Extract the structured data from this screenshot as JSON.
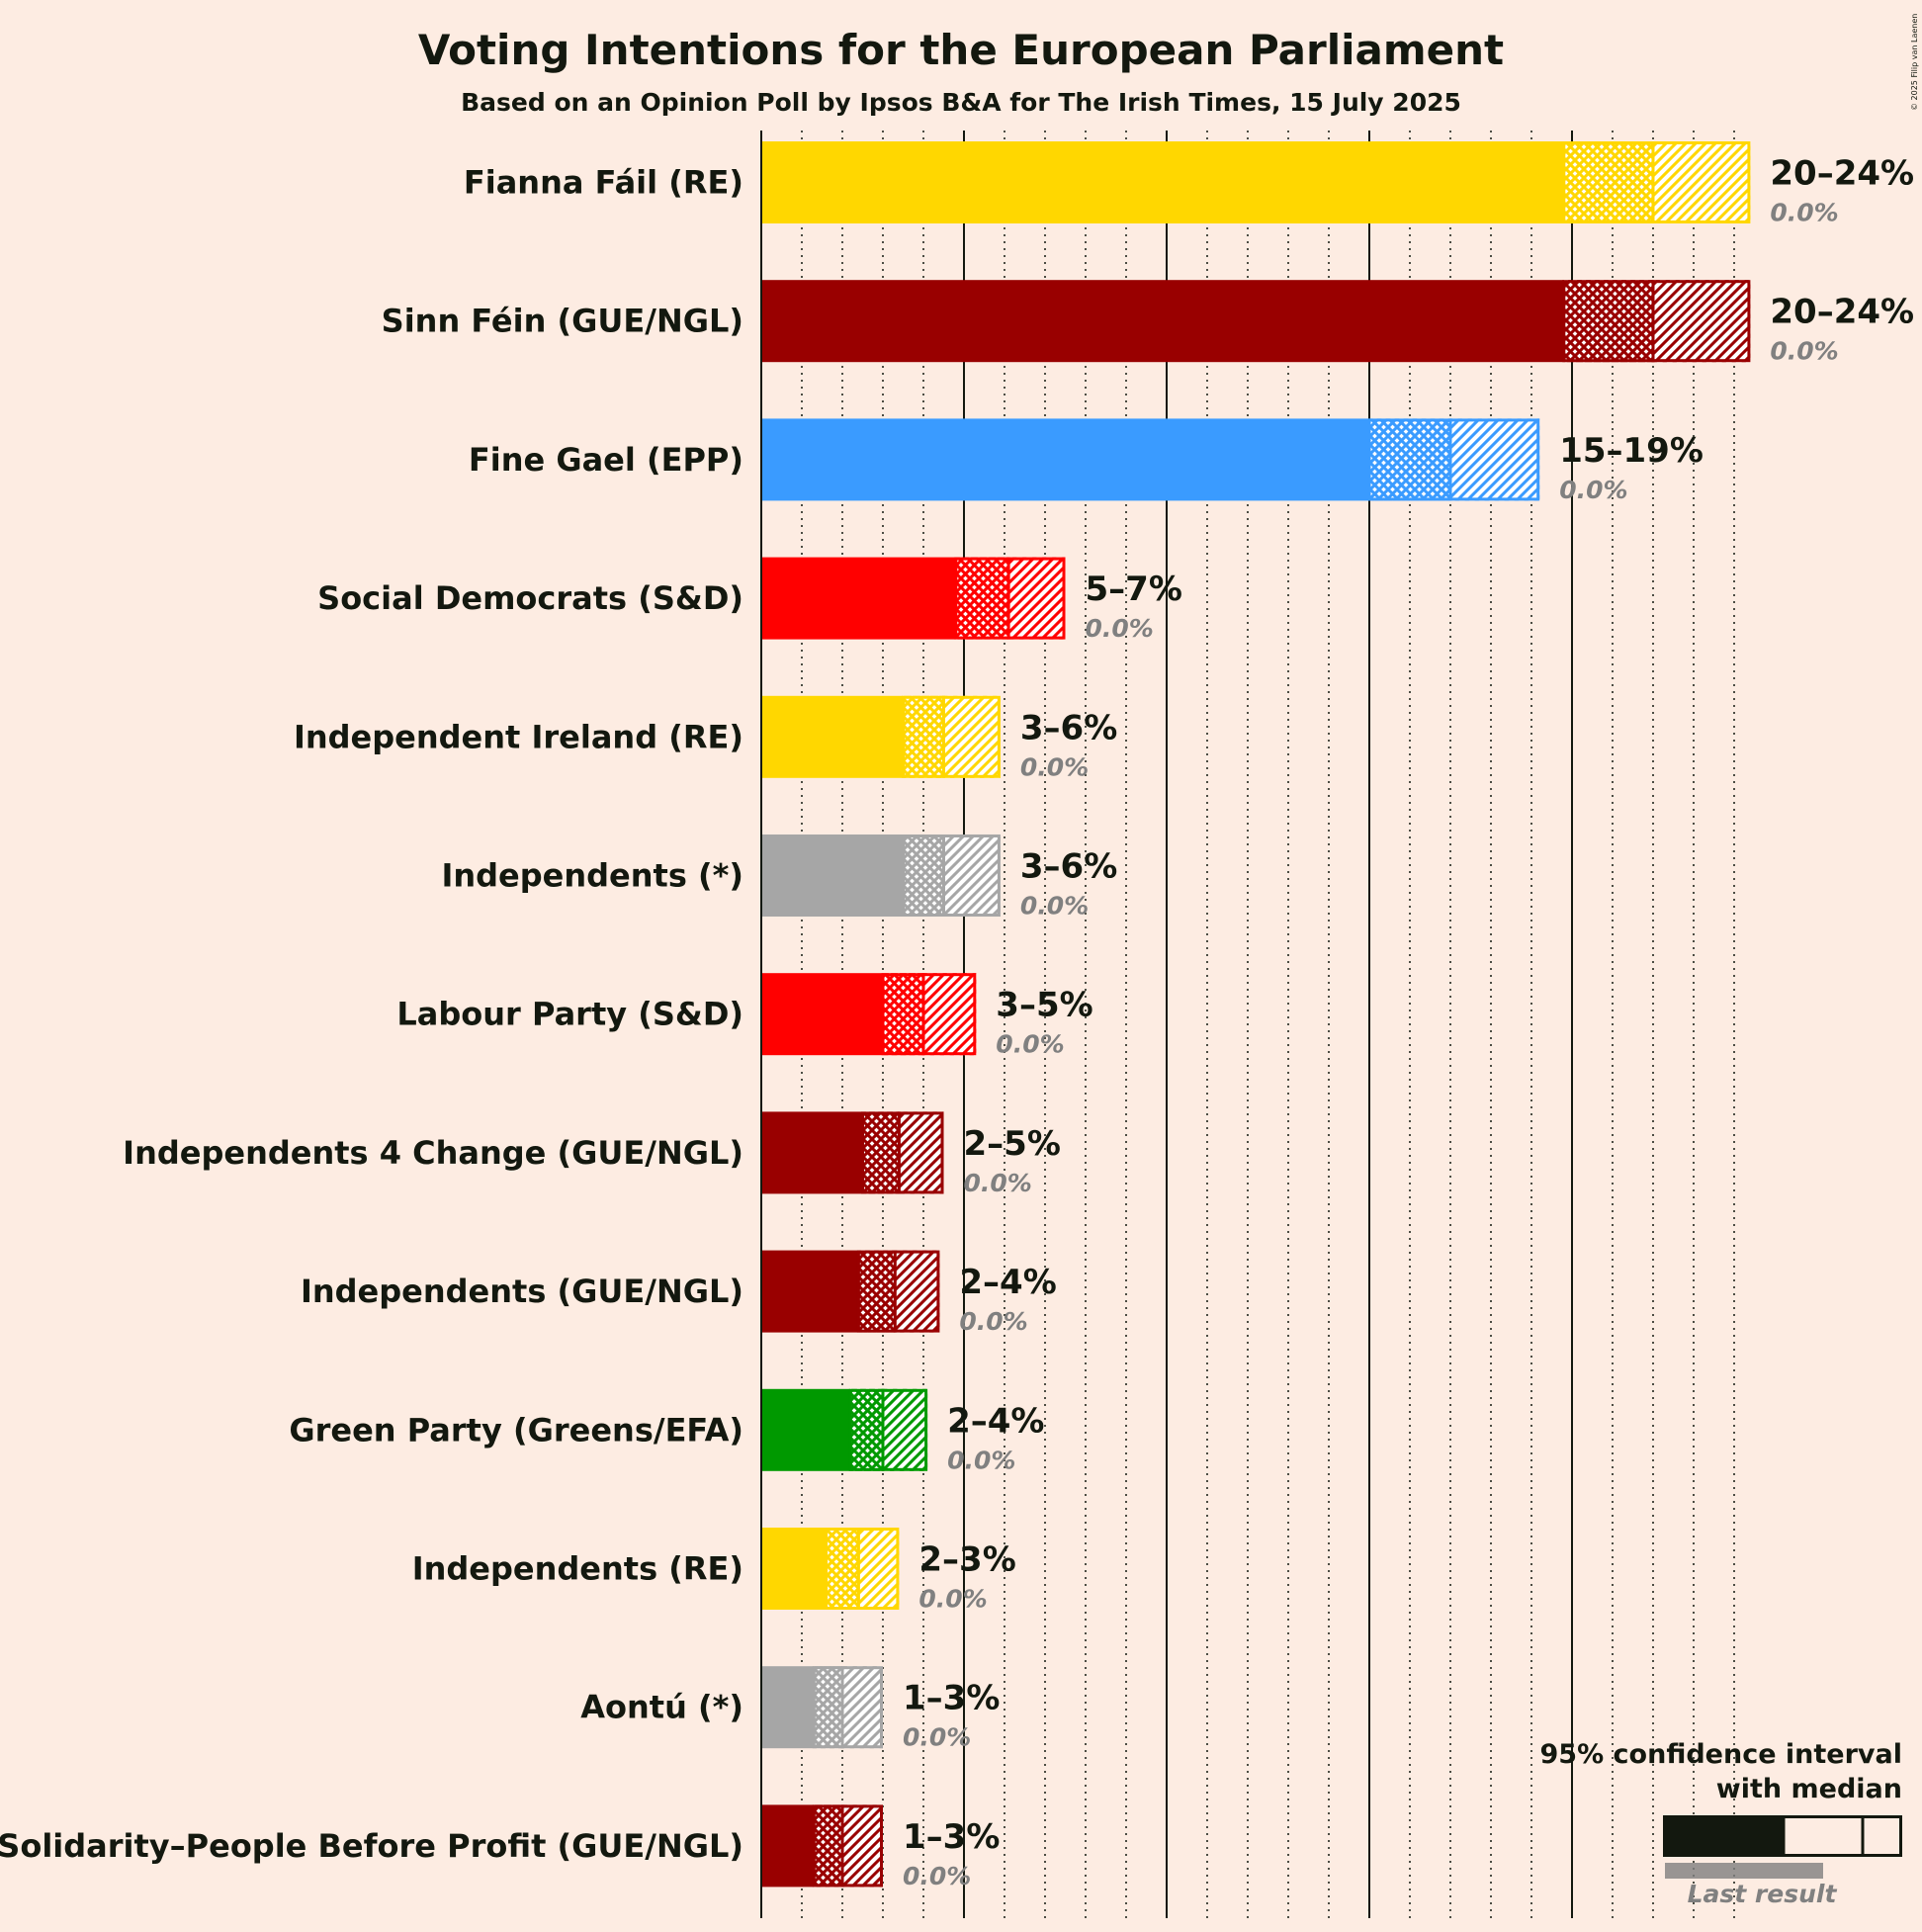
{
  "title": "Voting Intentions for the European Parliament",
  "subtitle": "Based on an Opinion Poll by Ipsos B&A for The Irish Times, 15 July 2025",
  "copyright": "© 2025 Filip van Laenen",
  "legend": {
    "line1": "95% confidence interval",
    "line2": "with median",
    "last_result": "Last result",
    "color": "#13180F"
  },
  "chart_data": {
    "type": "bar",
    "orientation": "horizontal",
    "unit": "%",
    "xlim": [
      0,
      24.5
    ],
    "grid": true,
    "legend_position": "bottom-right",
    "series_fields": [
      "ci_low",
      "median",
      "ci_high",
      "last_result"
    ],
    "parties": [
      {
        "name": "Fianna Fáil (RE)",
        "color": "#FFD700",
        "ci_low": 19.8,
        "median": 22.0,
        "ci_high": 24.4,
        "range_label": "20–24%",
        "last_result": 0.0,
        "last_label": "0.0%"
      },
      {
        "name": "Sinn Féin (GUE/NGL)",
        "color": "#990000",
        "ci_low": 19.8,
        "median": 22.0,
        "ci_high": 24.4,
        "range_label": "20–24%",
        "last_result": 0.0,
        "last_label": "0.0%"
      },
      {
        "name": "Fine Gael (EPP)",
        "color": "#3A9BFF",
        "ci_low": 15.0,
        "median": 17.0,
        "ci_high": 19.2,
        "range_label": "15–19%",
        "last_result": 0.0,
        "last_label": "0.0%"
      },
      {
        "name": "Social Democrats (S&D)",
        "color": "#FF0000",
        "ci_low": 4.8,
        "median": 6.1,
        "ci_high": 7.5,
        "range_label": "5–7%",
        "last_result": 0.0,
        "last_label": "0.0%"
      },
      {
        "name": "Independent Ireland (RE)",
        "color": "#FFD700",
        "ci_low": 3.5,
        "median": 4.5,
        "ci_high": 5.9,
        "range_label": "3–6%",
        "last_result": 0.0,
        "last_label": "0.0%"
      },
      {
        "name": "Independents (*)",
        "color": "#A6A6A6",
        "ci_low": 3.5,
        "median": 4.5,
        "ci_high": 5.9,
        "range_label": "3–6%",
        "last_result": 0.0,
        "last_label": "0.0%"
      },
      {
        "name": "Labour Party (S&D)",
        "color": "#FF0000",
        "ci_low": 3.0,
        "median": 4.0,
        "ci_high": 5.3,
        "range_label": "3–5%",
        "last_result": 0.0,
        "last_label": "0.0%"
      },
      {
        "name": "Independents 4 Change (GUE/NGL)",
        "color": "#990000",
        "ci_low": 2.5,
        "median": 3.4,
        "ci_high": 4.5,
        "range_label": "2–5%",
        "last_result": 0.0,
        "last_label": "0.0%"
      },
      {
        "name": "Independents (GUE/NGL)",
        "color": "#990000",
        "ci_low": 2.4,
        "median": 3.3,
        "ci_high": 4.4,
        "range_label": "2–4%",
        "last_result": 0.0,
        "last_label": "0.0%"
      },
      {
        "name": "Green Party (Greens/EFA)",
        "color": "#009900",
        "ci_low": 2.2,
        "median": 3.0,
        "ci_high": 4.1,
        "range_label": "2–4%",
        "last_result": 0.0,
        "last_label": "0.0%"
      },
      {
        "name": "Independents (RE)",
        "color": "#FFD700",
        "ci_low": 1.6,
        "median": 2.4,
        "ci_high": 3.4,
        "range_label": "2–3%",
        "last_result": 0.0,
        "last_label": "0.0%"
      },
      {
        "name": "Aontú (*)",
        "color": "#A6A6A6",
        "ci_low": 1.3,
        "median": 2.0,
        "ci_high": 3.0,
        "range_label": "1–3%",
        "last_result": 0.0,
        "last_label": "0.0%"
      },
      {
        "name": "Solidarity–People Before Profit (GUE/NGL)",
        "color": "#990000",
        "ci_low": 1.3,
        "median": 2.0,
        "ci_high": 3.0,
        "range_label": "1–3%",
        "last_result": 0.0,
        "last_label": "0.0%"
      }
    ]
  }
}
